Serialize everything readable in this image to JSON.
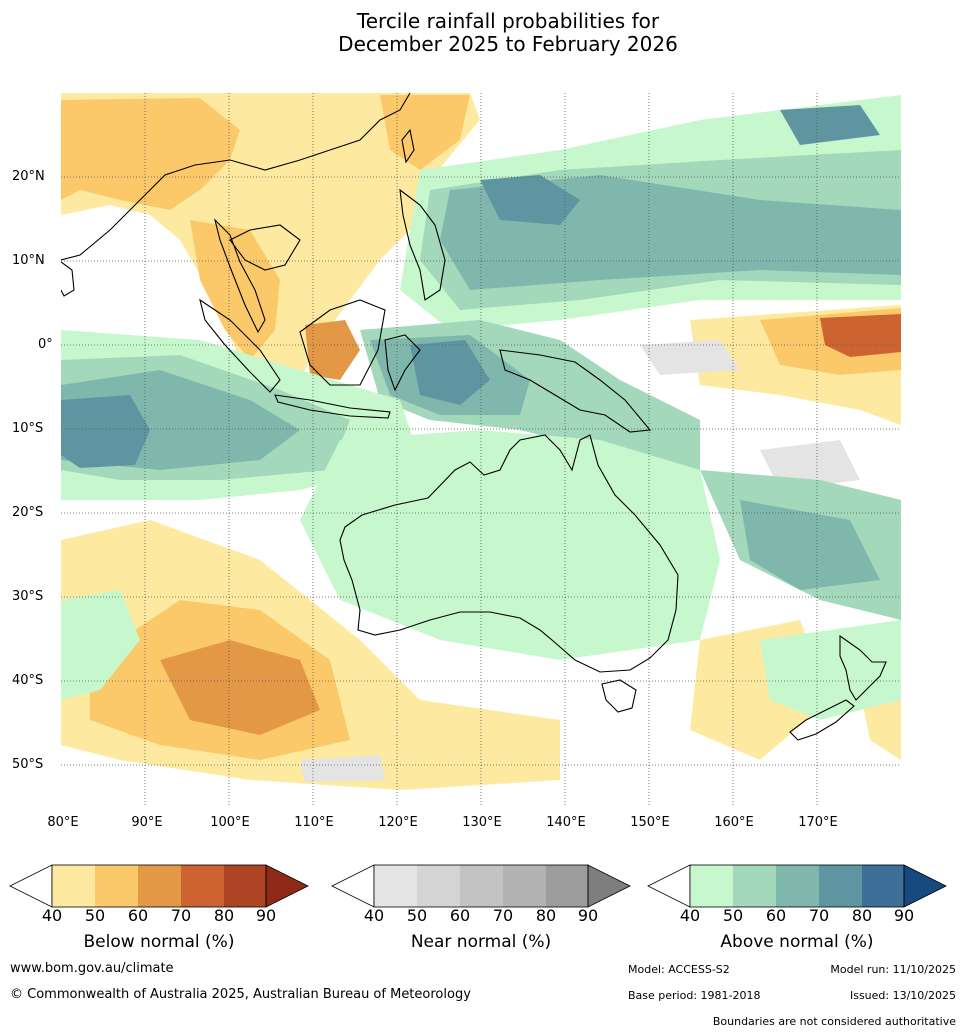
{
  "title": {
    "line1": "Tercile rainfall probabilities for",
    "line2": "December 2025 to February 2026"
  },
  "map": {
    "lon_range": [
      80,
      180
    ],
    "lat_range": [
      -55,
      30
    ],
    "lat_labels": [
      "20°N",
      "10°N",
      "0°",
      "10°S",
      "20°S",
      "30°S",
      "40°S",
      "50°S"
    ],
    "lon_labels": [
      "80°E",
      "90°E",
      "100°E",
      "110°E",
      "120°E",
      "130°E",
      "140°E",
      "150°E",
      "160°E",
      "170°E"
    ],
    "colors": {
      "below": [
        "#fdeaa0",
        "#fcc96a",
        "#e39846",
        "#cd6330",
        "#ae4423",
        "#8e2a17"
      ],
      "near": [
        "#e4e4e4",
        "#d4d4d4",
        "#c3c3c3",
        "#b3b3b3",
        "#9d9d9d",
        "#7e7e7e"
      ],
      "above": [
        "#c7f7cc",
        "#a4d8bb",
        "#7fb7ad",
        "#5e95a1",
        "#3e6f99",
        "#15497f"
      ]
    }
  },
  "legends": {
    "ticks": [
      "40",
      "50",
      "60",
      "70",
      "80",
      "90"
    ],
    "below_label": "Below normal (%)",
    "near_label": "Near normal (%)",
    "above_label": "Above normal (%)"
  },
  "footer": {
    "website": "www.bom.gov.au/climate",
    "copyright": "© Commonwealth of Australia 2025, Australian Bureau of Meteorology",
    "model": "Model: ACCESS-S2",
    "model_run": "Model run: 11/10/2025",
    "base_period": "Base period: 1981-2018",
    "issued": "Issued: 13/10/2025",
    "disclaimer": "Boundaries are not considered authoritative"
  }
}
